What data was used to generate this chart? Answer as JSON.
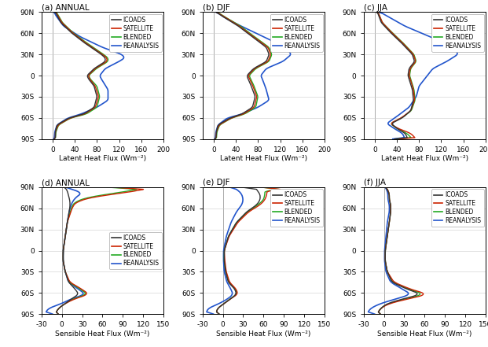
{
  "title_panels": [
    "(a) ANNUAL",
    "(b) DJF",
    "(c) JJA",
    "(d) ANNUAL",
    "(e) DJF",
    "(f) JJA"
  ],
  "xlabel_top": "Latent Heat Flux (Wm⁻²)",
  "xlabel_bot": "Sensible Heat Flux (Wm⁻²)",
  "ylim": [
    -90,
    90
  ],
  "xlim_lhf": [
    -20,
    200
  ],
  "xlim_shf": [
    -30,
    150
  ],
  "yticks": [
    -90,
    -60,
    -30,
    0,
    30,
    60,
    90
  ],
  "ytick_labels": [
    "90S",
    "60S",
    "30S",
    "0",
    "30N",
    "60N",
    "90N"
  ],
  "xticks_lhf": [
    0,
    40,
    80,
    120,
    160,
    200
  ],
  "xticks_shf": [
    -30,
    0,
    30,
    60,
    90,
    120,
    150
  ],
  "colors": {
    "ICOADS": "#333333",
    "SATELLITE": "#cc2200",
    "BLENDED": "#22aa22",
    "REANALYSIS": "#2255cc"
  },
  "legend_labels": [
    "ICOADS",
    "SATELLITE",
    "BLENDED",
    "REANALYSIS"
  ],
  "fig_bg": "#ffffff"
}
